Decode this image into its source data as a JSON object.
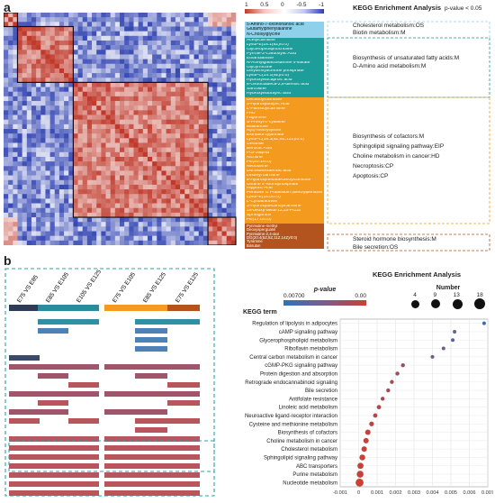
{
  "figure": {
    "panel_a_label": "a",
    "panel_b_label": "b",
    "colors": {
      "cluster1": "#8fd1ea",
      "cluster2": "#1e9e9a",
      "cluster3": "#f39a1f",
      "cluster4": "#b3541e",
      "heat_pos": "#c0392b",
      "heat_neg": "#2c3fb0",
      "dot_low": "#2f73b8",
      "dot_high": "#c94035",
      "bar_navy": "#3a4a6b",
      "bar_teal": "#2f8fa6",
      "bar_steel": "#4e81b5",
      "bar_rose": "#b8555d",
      "bar_mauve": "#a0566a"
    }
  },
  "panel_a": {
    "colorbar_ticks": [
      "1",
      "0.5",
      "0",
      "-0.5",
      "-1"
    ],
    "kegg_title": "KEGG Enrichment Analysis",
    "pvalue_note": "p-value < 0.05",
    "clusters": [
      {
        "color": "cluster1",
        "metabolites": [
          "5-Amino-7-oxononanoic acid",
          "Glutamylphenylalanine",
          "N-Cholsylglycine"
        ],
        "pathways": [
          "Cholesterol metabolism:OS",
          "Biotin metabolism:M"
        ]
      },
      {
        "color": "cluster2",
        "metabolites": [
          "Acetylcarnitine",
          "LysoPE(18:1(9Z)/0:0)",
          "Glycerophosphocholine",
          "Pyrrole-2-Carboxylic Acid",
          "Ethanolamine",
          "N-Acetylgalactosamine 4-sulfate",
          "Glycyrrhizine",
          "Dihydroxyacetone phosphate",
          "LysoPC(14:1(9Z)/0:0)",
          "Hydroxyisocaproic acid",
          "8-Oxooctadeca-2,8-dienoic acid",
          "Sarcosine",
          "Hydroxyisobutyric acid"
        ],
        "pathways": [
          "Biosynthesis of unsaturated fatty acids:M",
          "D-Amino acid metabolism:M"
        ]
      },
      {
        "color": "cluster3",
        "metabolites": [
          "Decanoylcarnitine",
          "3-Hydroxybutyric Acid",
          "L-Palmitoylcarnitine",
          "FAD",
          "Fagomine",
          "S-Prenyl-L-cysteine",
          "Maltotriose",
          "N(6)-Methyllysine",
          "Estradiol cypionate",
          "LysoPC(18:3(6Z,9Z,12Z)/0:0)",
          "Geranial",
          "Benzoic Acid",
          "PGF2alpha",
          "Nicotine",
          "PE(20:1/0:0)",
          "Nebularine",
          "Docosahexaenoic acid",
          "Linoleyl carnitine",
          "5-Hydroxyhexadecanoylcarnitine",
          "Uridine 5'-Monophosphate",
          "Hippuric Acid",
          "Penicillin G Potassium (Benzylpenicillin)",
          "LysoPE(18:0/0:0)",
          "L-Cystathionine",
          "3-Hydroxydecanoylcarnitine",
          "15-deoxy-delta-12,14-PGJ2",
          "Sphinganine",
          "PE(17:0/0:0)"
        ],
        "pathways": [
          "Biosynthesis of cofactors:M",
          "Sphingolipid signaling pathway:EIP",
          "Choline metabolism in cancer:HD",
          "Necroptosis:CP",
          "Apoptosis:CP"
        ]
      },
      {
        "color": "cluster4",
        "metabolites": [
          "Pyrimidine-methyl",
          "Deoxyspergualin",
          "Pyrimidine-2,4-diol",
          "DG(20:4(5Z,8Z,11Z,14Z)/0:0)",
          "Tyramine",
          "Bilirubin"
        ],
        "pathways": [
          "Steroid hormone biosynthesis:M",
          "Bile secretion:OS"
        ]
      }
    ]
  },
  "panel_b": {
    "comparisons": [
      "E75 VS E85",
      "E85 VS E105",
      "E105 VS E125",
      "E75 VS E105",
      "E85 VS E125",
      "E75 VS E125"
    ],
    "kegg_title": "KEGG Enrichment Analysis",
    "pvalue_legend_label": "p-value",
    "pvalue_legend_ticks": [
      "0.00700",
      "0.00"
    ],
    "number_legend_label": "Number",
    "number_legend_ticks": [
      "4",
      "9",
      "13",
      "18"
    ],
    "kegg_term_label": "KEGG term"
  },
  "chart_data": {
    "type": "scatter",
    "title": "KEGG Enrichment Analysis",
    "xlabel": "",
    "ylabel": "KEGG term",
    "xlim": [
      -0.001,
      0.007
    ],
    "x_ticks": [
      "-0.001",
      "0",
      "0.001",
      "0.002",
      "0.003",
      "0.004",
      "0.005",
      "0.006",
      "0.007"
    ],
    "categories": [
      "Regulation of lipolysis in adipocytes",
      "cAMP signaling pathway",
      "Glycerophospholipid metabolism",
      "Riboflavin metabolism",
      "Central carbon metabolism in cancer",
      "cGMP-PKG signaling pathway",
      "Protein digestion and absorption",
      "Retrograde endocannabinoid signaling",
      "Bile secretion",
      "Antifolate resistance",
      "Linoleic acid metabolism",
      "Neuroactive ligand-receptor interaction",
      "Cysteine and methionine metabolism",
      "Biosynthesis of cofactors",
      "Choline metabolism in cancer",
      "Cholesterol metabolism",
      "Sphingolipid signaling pathway",
      "ABC transporters",
      "Purine metabolism",
      "Nucleotide metabolism"
    ],
    "values": [
      0.0068,
      0.0052,
      0.0051,
      0.0046,
      0.004,
      0.0024,
      0.0021,
      0.0018,
      0.0016,
      0.0013,
      0.0011,
      0.0009,
      0.0007,
      0.0005,
      0.0004,
      0.0003,
      0.0002,
      0.0001,
      8e-05,
      5e-05
    ],
    "sizes": [
      4,
      4,
      4,
      4,
      4,
      5,
      5,
      5,
      5,
      5,
      6,
      6,
      7,
      9,
      9,
      9,
      10,
      11,
      13,
      16
    ],
    "grid": true,
    "legend_placement": "top"
  }
}
